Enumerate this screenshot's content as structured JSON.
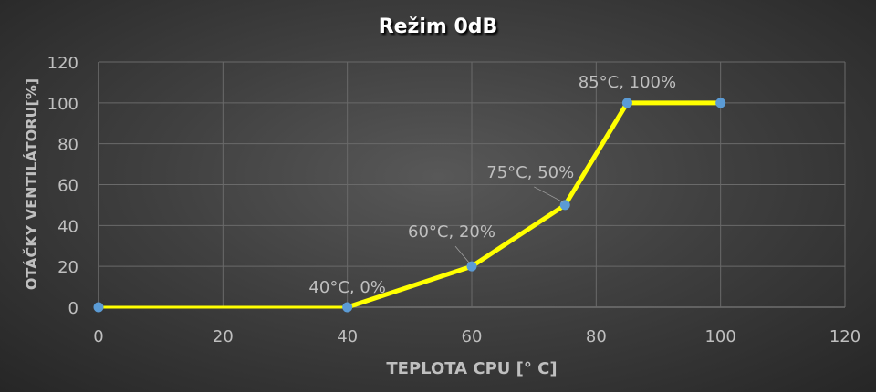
{
  "chart_data": {
    "type": "line",
    "title": "Režim 0dB",
    "xlabel": "TEPLOTA CPU [° C]",
    "ylabel": "OTÁČKY VENTILÁTORU[%]",
    "xlim": [
      0,
      120
    ],
    "ylim": [
      0,
      120
    ],
    "xticks": [
      "0",
      "20",
      "40",
      "60",
      "80",
      "100",
      "120"
    ],
    "yticks": [
      "0",
      "20",
      "40",
      "60",
      "80",
      "100",
      "120"
    ],
    "grid": true,
    "series": [
      {
        "x": [
          0,
          40,
          60,
          75,
          85,
          100
        ],
        "y": [
          0,
          0,
          20,
          50,
          100,
          100
        ]
      }
    ],
    "annotations": [
      {
        "x": 40,
        "y": 0,
        "text": "40°C, 0%"
      },
      {
        "x": 60,
        "y": 20,
        "text": "60°C, 20%"
      },
      {
        "x": 75,
        "y": 50,
        "text": "75°C, 50%"
      },
      {
        "x": 85,
        "y": 100,
        "text": "85°C, 100%"
      }
    ],
    "colors": {
      "line": "#ffff00",
      "marker": "#5b9bd5",
      "text": "#bfbfbf",
      "grid": "#6a6a6a"
    }
  }
}
